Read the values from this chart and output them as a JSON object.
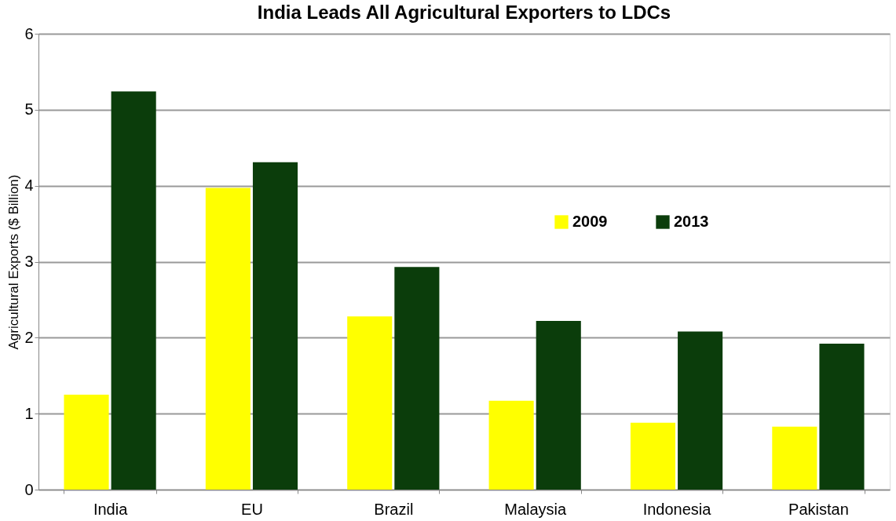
{
  "chart_data": {
    "type": "bar",
    "title": "India Leads All Agricultural Exporters to LDCs",
    "ylabel": "Agricultural Exports ($ Billion)",
    "categories": [
      "India",
      "EU",
      "Brazil",
      "Malaysia",
      "Indonesia",
      "Pakistan"
    ],
    "series": [
      {
        "name": "2009",
        "color": "#ffff00",
        "values": [
          1.25,
          3.97,
          2.28,
          1.17,
          0.88,
          0.83
        ]
      },
      {
        "name": "2013",
        "color": "#0b3d0b",
        "values": [
          5.24,
          4.31,
          2.93,
          2.22,
          2.08,
          1.92
        ]
      }
    ],
    "ylim": [
      0,
      6
    ],
    "yticks": [
      0,
      1,
      2,
      3,
      4,
      5,
      6
    ],
    "grid": "y",
    "legend": "top right"
  }
}
